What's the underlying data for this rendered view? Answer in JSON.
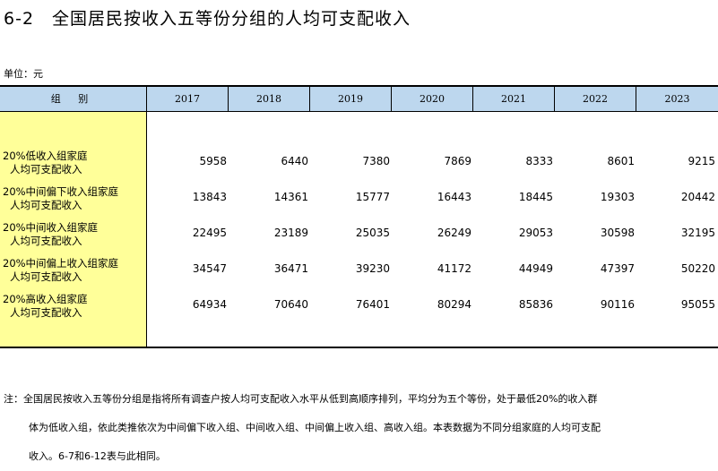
{
  "title": "6-2　全国居民按收入五等份分组的人均可支配收入",
  "unit": "单位：元",
  "table": {
    "header_label": "组 别",
    "years": [
      "2017",
      "2018",
      "2019",
      "2020",
      "2021",
      "2022",
      "2023"
    ],
    "rows": [
      {
        "line1": "20%低收入组家庭",
        "line2": "人均可支配收入",
        "values": [
          "5958",
          "6440",
          "7380",
          "7869",
          "8333",
          "8601",
          "9215"
        ]
      },
      {
        "line1": "20%中间偏下收入组家庭",
        "line2": "人均可支配收入",
        "values": [
          "13843",
          "14361",
          "15777",
          "16443",
          "18445",
          "19303",
          "20442"
        ]
      },
      {
        "line1": "20%中间收入组家庭",
        "line2": "人均可支配收入",
        "values": [
          "22495",
          "23189",
          "25035",
          "26249",
          "29053",
          "30598",
          "32195"
        ]
      },
      {
        "line1": "20%中间偏上收入组家庭",
        "line2": "人均可支配收入",
        "values": [
          "34547",
          "36471",
          "39230",
          "41172",
          "44949",
          "47397",
          "50220"
        ]
      },
      {
        "line1": "20%高收入组家庭",
        "line2": "人均可支配收入",
        "values": [
          "64934",
          "70640",
          "76401",
          "80294",
          "85836",
          "90116",
          "95055"
        ]
      }
    ]
  },
  "note": {
    "line1": "注：全国居民按收入五等份分组是指将所有调查户按人均可支配收入水平从低到高顺序排列，平均分为五个等份，处于最低20%的收入群",
    "line2": "体为低收入组，依此类推依次为中间偏下收入组、中间收入组、中间偏上收入组、高收入组。本表数据为不同分组家庭的人均可支配",
    "line3": "收入。6-7和6-12表与此相同。"
  }
}
